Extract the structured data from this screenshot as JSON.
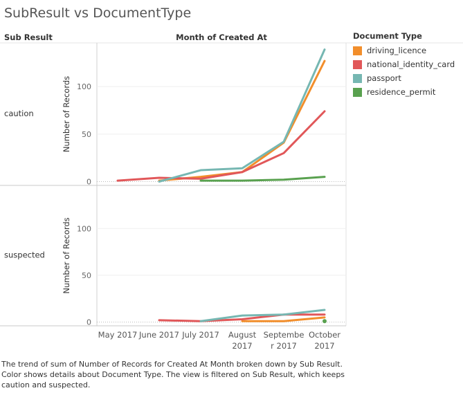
{
  "title": "SubResult vs DocumentType",
  "row_header": "Sub Result",
  "column_header": "Month of Created At",
  "legend": {
    "title": "Document Type",
    "items": [
      {
        "label": "driving_licence",
        "color": "#F28E2B"
      },
      {
        "label": "national_identity_card",
        "color": "#E15759"
      },
      {
        "label": "passport",
        "color": "#76B7B2"
      },
      {
        "label": "residence_permit",
        "color": "#59A14F"
      }
    ]
  },
  "caption": "The trend of sum of Number of Records for Created At Month broken down by Sub Result.  Color shows details about Document Type. The view is filtered on Sub Result, which keeps caution and suspected.",
  "chart_data": {
    "type": "line",
    "x_categories": [
      "May 2017",
      "June 2017",
      "July 2017",
      "August 2017",
      "September 2017",
      "October 2017"
    ],
    "x_tick_labels": [
      [
        "May 2017"
      ],
      [
        "June 2017"
      ],
      [
        "July 2017"
      ],
      [
        "August",
        "2017"
      ],
      [
        "Septembe",
        "r 2017"
      ],
      [
        "October",
        "2017"
      ]
    ],
    "ylabel": "Number of Records",
    "yticks": [
      0,
      50,
      100
    ],
    "ylim": [
      -4,
      146
    ],
    "grid": true,
    "legend_position": "right",
    "panels": [
      {
        "label": "caution",
        "series": [
          {
            "name": "driving_licence",
            "color": "#F28E2B",
            "values": [
              null,
              1,
              5,
              10,
              41,
              127
            ]
          },
          {
            "name": "national_identity_card",
            "color": "#E15759",
            "values": [
              1,
              4,
              3,
              10,
              30,
              74
            ]
          },
          {
            "name": "passport",
            "color": "#76B7B2",
            "values": [
              null,
              0,
              12,
              14,
              42,
              139
            ]
          },
          {
            "name": "residence_permit",
            "color": "#59A14F",
            "values": [
              null,
              null,
              1,
              1,
              2,
              5
            ]
          }
        ]
      },
      {
        "label": "suspected",
        "series": [
          {
            "name": "driving_licence",
            "color": "#F28E2B",
            "values": [
              null,
              null,
              null,
              1,
              1,
              5
            ]
          },
          {
            "name": "national_identity_card",
            "color": "#E15759",
            "values": [
              null,
              2,
              1,
              3,
              8,
              8
            ]
          },
          {
            "name": "passport",
            "color": "#76B7B2",
            "values": [
              null,
              null,
              1,
              7,
              8,
              13
            ]
          },
          {
            "name": "residence_permit",
            "color": "#59A14F",
            "values": [
              null,
              null,
              null,
              null,
              null,
              1
            ]
          }
        ]
      }
    ]
  }
}
